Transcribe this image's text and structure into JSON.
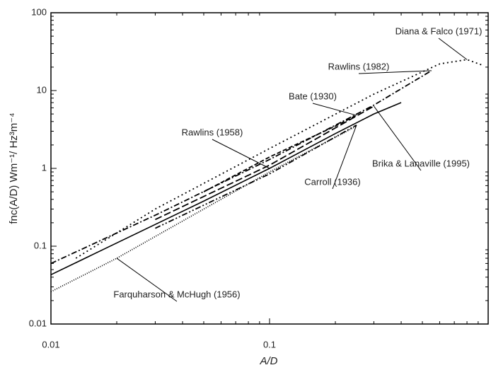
{
  "chart_data": {
    "type": "line",
    "log_x": true,
    "log_y": true,
    "xlabel": "A/D",
    "ylabel": "fnc(A/D)  Wm⁻¹/ Hz³m⁻⁴",
    "xlim": [
      0.01,
      1
    ],
    "xticks": [
      0.01,
      0.1
    ],
    "ylim": [
      0.01,
      100
    ],
    "yticks": [
      0.01,
      0.1,
      1,
      10,
      100
    ],
    "series": [
      {
        "name": "Diana & Falco (1971)",
        "color": "#000000",
        "style": "dotted",
        "x": [
          0.013,
          0.03,
          0.1,
          0.3,
          0.6,
          0.8,
          0.95
        ],
        "values": [
          0.07,
          0.3,
          1.8,
          9,
          22,
          25,
          21
        ]
      },
      {
        "name": "Rawlins (1982)",
        "color": "#000000",
        "style": "dash-dot",
        "x": [
          0.01,
          0.03,
          0.1,
          0.3,
          0.55
        ],
        "values": [
          0.06,
          0.25,
          1.3,
          6.5,
          18
        ]
      },
      {
        "name": "Bate (1930)",
        "color": "#000000",
        "style": "dashed",
        "x": [
          0.05,
          0.1,
          0.2,
          0.25
        ],
        "values": [
          0.5,
          1.4,
          3.5,
          4.8
        ]
      },
      {
        "name": "Rawlins (1958)",
        "color": "#000000",
        "style": "solid",
        "x": [
          0.01,
          0.02,
          0.05,
          0.1,
          0.2,
          0.3,
          0.4
        ],
        "values": [
          0.043,
          0.11,
          0.38,
          1.0,
          2.8,
          5.0,
          7.0
        ]
      },
      {
        "name": "Brika & Lanaville (1995)",
        "color": "#000000",
        "style": "long-dash",
        "x": [
          0.03,
          0.1,
          0.3
        ],
        "values": [
          0.22,
          1.1,
          6.3
        ]
      },
      {
        "name": "Carroll (1936)",
        "color": "#000000",
        "style": "dash-dot-dot",
        "x": [
          0.03,
          0.1,
          0.25
        ],
        "values": [
          0.17,
          0.85,
          3.6
        ]
      },
      {
        "name": "Farquharson & McHugh (1956)",
        "color": "#000000",
        "style": "fine-dotted",
        "x": [
          0.01,
          0.02,
          0.05,
          0.1,
          0.25
        ],
        "values": [
          0.026,
          0.07,
          0.3,
          0.9,
          3.5
        ]
      }
    ]
  }
}
